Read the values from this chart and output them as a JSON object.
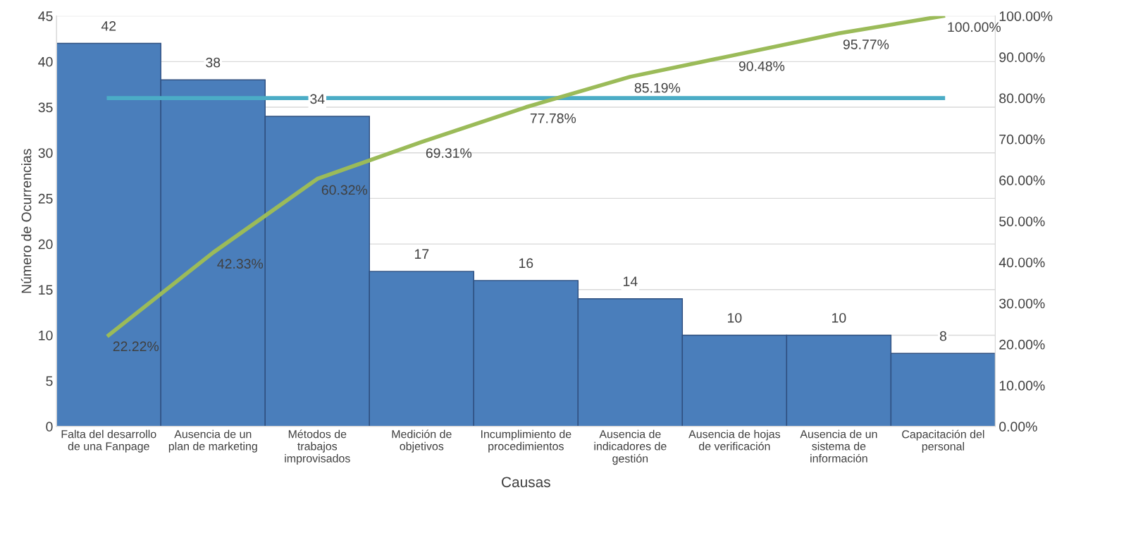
{
  "chart_data": {
    "type": "bar",
    "xlabel": "Causas",
    "ylabel": "Número de Ocurrencias",
    "categories": [
      "Falta del desarrollo\nde una Fanpage",
      "Ausencia de un\nplan de marketing",
      "Métodos de\ntrabajos\nimprovisados",
      "Medición de\nobjetivos",
      "Incumplimiento de\nprocedimientos",
      "Ausencia de\nindicadores de\ngestión",
      "Ausencia de hojas\nde verificación",
      "Ausencia de un\nsistema de\ninformación",
      "Capacitación del\npersonal"
    ],
    "series": [
      {
        "color": "#4a7ebb",
        "values": [
          42,
          38,
          34,
          17,
          16,
          14,
          10,
          10,
          8
        ],
        "value_labels": [
          "42",
          "38",
          "34",
          "17",
          "16",
          "14",
          "10",
          "10",
          "8"
        ]
      },
      {
        "type": "line",
        "axis": "y2",
        "color": "#9bbb59",
        "values": [
          22.22,
          42.33,
          60.32,
          69.31,
          77.78,
          85.19,
          90.48,
          95.77,
          100.0
        ],
        "value_labels": [
          "22.22%",
          "42.33%",
          "60.32%",
          "69.31%",
          "77.78%",
          "85.19%",
          "90.48%",
          "95.77%",
          "100.00%"
        ]
      }
    ],
    "ref_lines": [
      {
        "axis": "y2",
        "value": 80,
        "color": "#4bacc6"
      }
    ],
    "ylim": [
      0,
      45
    ],
    "yticks": [
      0,
      5,
      10,
      15,
      20,
      25,
      30,
      35,
      40,
      45
    ],
    "y2lim": [
      0,
      100
    ],
    "y2ticks": [
      {
        "value": 0,
        "label": "0.00%"
      },
      {
        "value": 10,
        "label": "10.00%"
      },
      {
        "value": 20,
        "label": "20.00%"
      },
      {
        "value": 30,
        "label": "30.00%"
      },
      {
        "value": 40,
        "label": "40.00%"
      },
      {
        "value": 50,
        "label": "50.00%"
      },
      {
        "value": 60,
        "label": "60.00%"
      },
      {
        "value": 70,
        "label": "70.00%"
      },
      {
        "value": 80,
        "label": "80.00%"
      },
      {
        "value": 90,
        "label": "90.00%"
      },
      {
        "value": 100,
        "label": "100.00%"
      }
    ],
    "grid": "y"
  }
}
